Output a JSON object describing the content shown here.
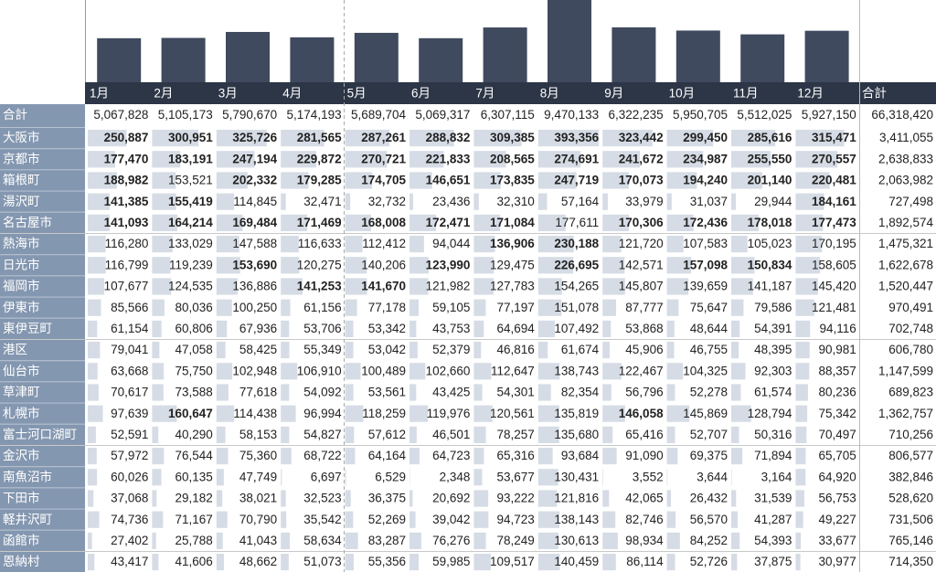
{
  "table": {
    "columns": [
      "1月",
      "2月",
      "3月",
      "4月",
      "5月",
      "6月",
      "7月",
      "8月",
      "9月",
      "10月",
      "11月",
      "12月",
      "合計"
    ],
    "total_row": {
      "name": "合計",
      "values": [
        "5,067,828",
        "5,105,173",
        "5,790,670",
        "5,174,193",
        "5,689,704",
        "5,069,317",
        "6,307,115",
        "9,470,133",
        "6,322,235",
        "5,950,705",
        "5,512,025",
        "5,927,150"
      ],
      "total": "66,318,420"
    },
    "rows": [
      {
        "name": "大阪市",
        "values": [
          "250,887",
          "300,951",
          "325,726",
          "281,565",
          "287,261",
          "288,832",
          "309,385",
          "393,356",
          "323,442",
          "299,450",
          "285,616",
          "315,471"
        ],
        "total": "3,411,055",
        "bold": [
          0,
          1,
          2,
          3,
          4,
          5,
          6,
          7,
          8,
          9,
          10,
          11
        ]
      },
      {
        "name": "京都市",
        "values": [
          "177,470",
          "183,191",
          "247,194",
          "229,872",
          "270,721",
          "221,833",
          "208,565",
          "274,691",
          "241,672",
          "234,987",
          "255,550",
          "270,557"
        ],
        "total": "2,638,833",
        "bold": [
          0,
          1,
          2,
          3,
          4,
          5,
          6,
          7,
          8,
          9,
          10,
          11
        ]
      },
      {
        "name": "箱根町",
        "values": [
          "188,982",
          "153,521",
          "202,332",
          "179,285",
          "174,705",
          "146,651",
          "173,835",
          "247,719",
          "170,073",
          "194,240",
          "201,140",
          "220,481"
        ],
        "total": "2,063,982",
        "bold": [
          0,
          2,
          3,
          4,
          5,
          6,
          7,
          8,
          9,
          10,
          11
        ]
      },
      {
        "name": "湯沢町",
        "values": [
          "141,385",
          "155,419",
          "114,845",
          "32,471",
          "32,732",
          "23,436",
          "32,310",
          "57,164",
          "33,979",
          "31,037",
          "29,944",
          "184,161"
        ],
        "total": "727,498",
        "bold": [
          0,
          1,
          11
        ]
      },
      {
        "name": "名古屋市",
        "values": [
          "141,093",
          "164,214",
          "169,484",
          "171,469",
          "168,008",
          "172,471",
          "171,084",
          "177,611",
          "170,306",
          "172,436",
          "178,018",
          "177,473"
        ],
        "total": "1,892,574",
        "bold": [
          0,
          1,
          2,
          3,
          4,
          5,
          6,
          8,
          9,
          10,
          11
        ]
      },
      {
        "name": "熱海市",
        "values": [
          "116,280",
          "133,029",
          "147,588",
          "116,633",
          "112,412",
          "94,044",
          "136,906",
          "230,188",
          "121,720",
          "107,583",
          "105,023",
          "170,195"
        ],
        "total": "1,475,321",
        "bold": [
          6,
          7
        ]
      },
      {
        "name": "日光市",
        "values": [
          "116,799",
          "119,239",
          "153,690",
          "120,275",
          "140,206",
          "123,990",
          "129,475",
          "226,695",
          "142,571",
          "157,098",
          "150,834",
          "158,605"
        ],
        "total": "1,622,678",
        "bold": [
          2,
          5,
          7,
          9,
          10
        ]
      },
      {
        "name": "福岡市",
        "values": [
          "107,677",
          "124,535",
          "136,886",
          "141,253",
          "141,670",
          "121,982",
          "127,783",
          "154,265",
          "145,807",
          "139,659",
          "141,187",
          "145,420"
        ],
        "total": "1,520,447",
        "bold": [
          3,
          4
        ]
      },
      {
        "name": "伊東市",
        "values": [
          "85,566",
          "80,036",
          "100,250",
          "61,156",
          "77,178",
          "59,105",
          "77,197",
          "151,078",
          "87,777",
          "75,647",
          "79,586",
          "121,481"
        ],
        "total": "970,491",
        "bold": []
      },
      {
        "name": "東伊豆町",
        "values": [
          "61,154",
          "60,806",
          "67,936",
          "53,706",
          "53,342",
          "43,753",
          "64,694",
          "107,492",
          "53,868",
          "48,644",
          "54,391",
          "94,116"
        ],
        "total": "702,748",
        "bold": []
      },
      {
        "name": "港区",
        "values": [
          "79,041",
          "47,058",
          "58,425",
          "55,349",
          "53,042",
          "52,379",
          "46,816",
          "61,674",
          "45,906",
          "46,755",
          "48,395",
          "90,981"
        ],
        "total": "606,780",
        "bold": []
      },
      {
        "name": "仙台市",
        "values": [
          "63,668",
          "75,750",
          "102,948",
          "106,910",
          "100,489",
          "102,660",
          "112,647",
          "138,743",
          "122,467",
          "104,325",
          "92,303",
          "88,357"
        ],
        "total": "1,147,599",
        "bold": []
      },
      {
        "name": "草津町",
        "values": [
          "70,617",
          "73,588",
          "77,618",
          "54,092",
          "53,561",
          "43,425",
          "54,301",
          "82,354",
          "56,796",
          "52,278",
          "61,574",
          "80,236"
        ],
        "total": "689,823",
        "bold": []
      },
      {
        "name": "札幌市",
        "values": [
          "97,639",
          "160,647",
          "114,438",
          "96,994",
          "118,259",
          "119,976",
          "120,561",
          "135,819",
          "146,058",
          "145,869",
          "128,794",
          "75,342"
        ],
        "total": "1,362,757",
        "bold": [
          1,
          8
        ]
      },
      {
        "name": "富士河口湖町",
        "values": [
          "52,591",
          "40,290",
          "58,153",
          "54,827",
          "57,612",
          "46,501",
          "78,257",
          "135,680",
          "65,416",
          "52,707",
          "50,316",
          "70,497"
        ],
        "total": "710,256",
        "bold": []
      },
      {
        "name": "金沢市",
        "values": [
          "57,972",
          "76,544",
          "75,360",
          "68,722",
          "64,164",
          "64,723",
          "65,316",
          "93,684",
          "91,090",
          "69,375",
          "71,894",
          "65,705"
        ],
        "total": "806,577",
        "bold": []
      },
      {
        "name": "南魚沼市",
        "values": [
          "60,026",
          "60,135",
          "47,749",
          "6,697",
          "6,529",
          "2,348",
          "53,677",
          "130,431",
          "3,552",
          "3,644",
          "3,164",
          "64,920"
        ],
        "total": "382,846",
        "bold": []
      },
      {
        "name": "下田市",
        "values": [
          "37,068",
          "29,182",
          "38,021",
          "32,523",
          "36,375",
          "20,692",
          "93,222",
          "121,816",
          "42,065",
          "26,432",
          "31,539",
          "56,753"
        ],
        "total": "528,620",
        "bold": []
      },
      {
        "name": "軽井沢町",
        "values": [
          "74,736",
          "71,167",
          "70,790",
          "35,542",
          "52,269",
          "39,042",
          "94,723",
          "138,143",
          "82,746",
          "56,570",
          "41,287",
          "49,227"
        ],
        "total": "731,506",
        "bold": []
      },
      {
        "name": "函館市",
        "values": [
          "27,402",
          "25,788",
          "41,043",
          "58,634",
          "83,287",
          "76,276",
          "78,249",
          "130,613",
          "98,934",
          "84,252",
          "54,393",
          "33,677"
        ],
        "total": "765,146",
        "bold": []
      },
      {
        "name": "恩納村",
        "values": [
          "43,417",
          "41,606",
          "48,662",
          "51,073",
          "55,356",
          "59,985",
          "109,517",
          "140,459",
          "86,114",
          "52,726",
          "37,875",
          "30,977"
        ],
        "total": "714,350",
        "bold": []
      }
    ]
  }
}
